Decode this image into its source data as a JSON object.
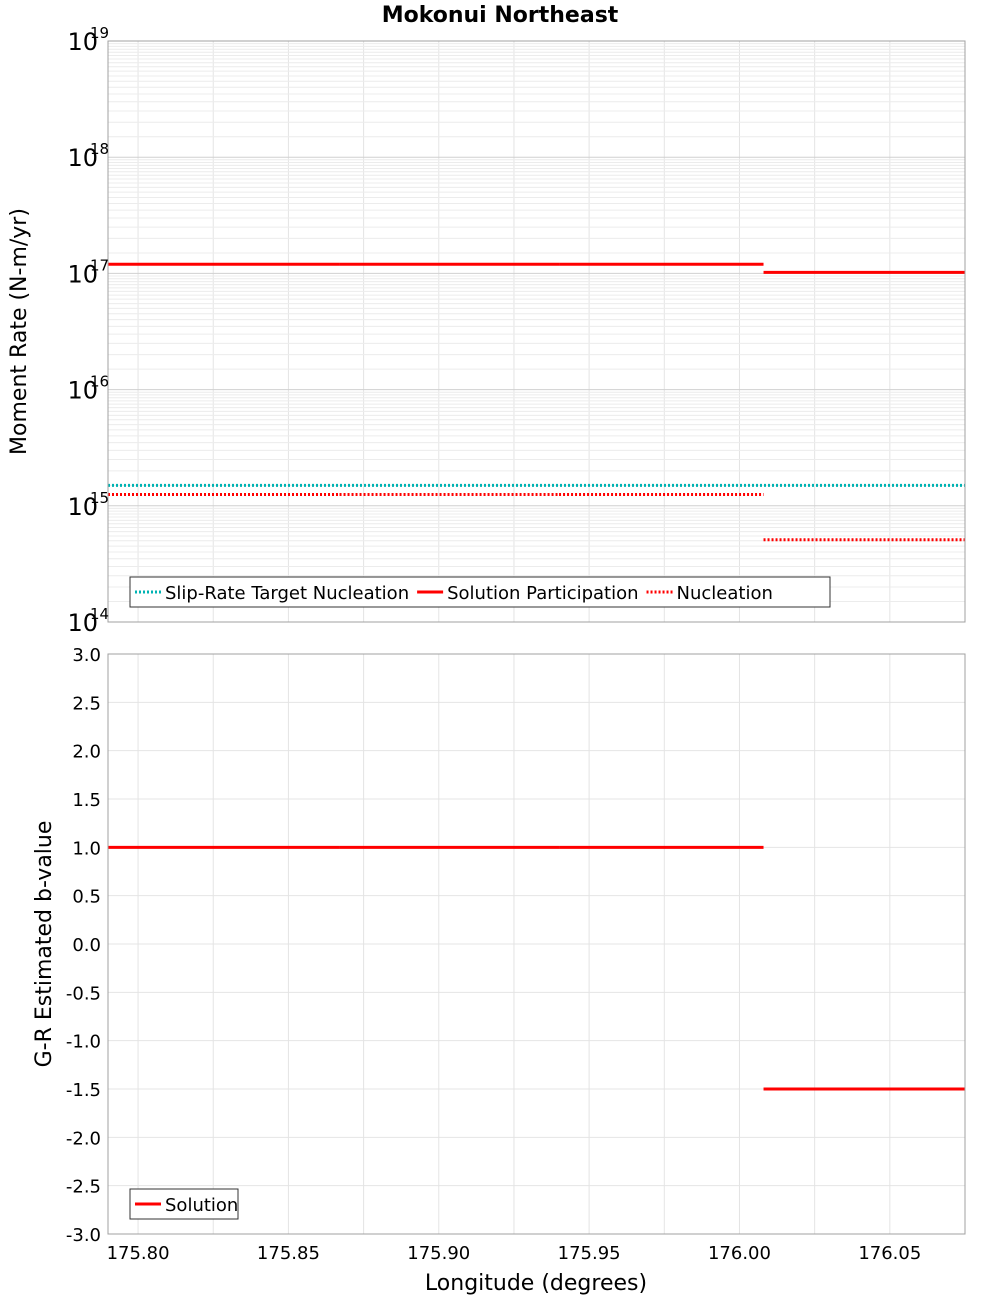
{
  "chart_data": [
    {
      "id": "moment",
      "type": "line",
      "title": "Mokonui Northeast",
      "ylabel": "Moment Rate (N-m/yr)",
      "xlabel": "",
      "yscale": "log",
      "ylim": [
        100000000000000.0,
        1e+19
      ],
      "xlim": [
        175.79,
        176.075
      ],
      "y_decades": [
        {
          "base": "10",
          "exp": "14",
          "value": 100000000000000.0
        },
        {
          "base": "10",
          "exp": "15",
          "value": 1000000000000000.0
        },
        {
          "base": "10",
          "exp": "16",
          "value": 1e+16
        },
        {
          "base": "10",
          "exp": "17",
          "value": 1e+17
        },
        {
          "base": "10",
          "exp": "18",
          "value": 1e+18
        },
        {
          "base": "10",
          "exp": "19",
          "value": 1e+19
        }
      ],
      "series": [
        {
          "name": "Slip-Rate Target Nucleation",
          "color": "#00b3b3",
          "style": "dotted",
          "segments": [
            [
              175.79,
              176.075,
              1500000000000000.0
            ]
          ]
        },
        {
          "name": "Solution Participation",
          "color": "#ff0000",
          "style": "solid",
          "segments": [
            [
              175.79,
              175.867,
              1.2e+17
            ],
            [
              175.867,
              175.94,
              1.2e+17
            ],
            [
              175.94,
              176.008,
              1.2e+17
            ],
            [
              176.008,
              176.075,
              1.02e+17
            ]
          ]
        },
        {
          "name": "Nucleation",
          "color": "#ff0000",
          "style": "dotted",
          "segments": [
            [
              175.79,
              175.867,
              1250000000000000.0
            ],
            [
              175.867,
              175.94,
              1250000000000000.0
            ],
            [
              175.94,
              176.008,
              1250000000000000.0
            ],
            [
              176.008,
              176.075,
              510000000000000.0
            ]
          ]
        }
      ],
      "legend": {
        "placement": "bottom-left"
      }
    },
    {
      "id": "bvalue",
      "type": "line",
      "title": "",
      "ylabel": "G-R Estimated b-value",
      "xlabel": "Longitude (degrees)",
      "ylim": [
        -3.0,
        3.0
      ],
      "xlim": [
        175.79,
        176.075
      ],
      "yticks": [
        "-3.0",
        "-2.5",
        "-2.0",
        "-1.5",
        "-1.0",
        "-0.5",
        "0.0",
        "0.5",
        "1.0",
        "1.5",
        "2.0",
        "2.5",
        "3.0"
      ],
      "xticks": [
        "175.80",
        "175.85",
        "175.90",
        "175.95",
        "176.00",
        "176.05"
      ],
      "series": [
        {
          "name": "Solution",
          "color": "#ff0000",
          "style": "solid",
          "segments": [
            [
              175.79,
              175.867,
              1.0
            ],
            [
              175.867,
              175.94,
              1.0
            ],
            [
              175.94,
              176.008,
              1.0
            ],
            [
              176.008,
              176.075,
              -1.5
            ]
          ]
        }
      ],
      "legend": {
        "placement": "bottom-left"
      }
    }
  ]
}
